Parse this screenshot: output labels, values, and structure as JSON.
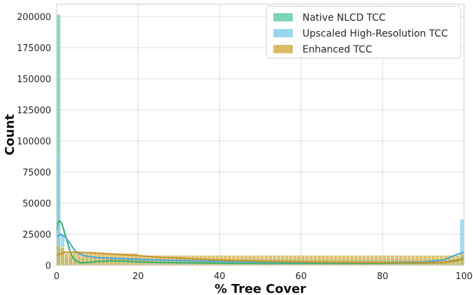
{
  "chart_data": {
    "type": "histogram",
    "xlabel": "% Tree Cover",
    "ylabel": "Count",
    "xlim": [
      0,
      100
    ],
    "ylim": [
      0,
      210000
    ],
    "xticks": [
      0,
      20,
      40,
      60,
      80,
      100
    ],
    "yticks": [
      0,
      25000,
      50000,
      75000,
      100000,
      125000,
      150000,
      175000,
      200000
    ],
    "grid": true,
    "legend_position": "top-right",
    "bin_width": 1,
    "series": [
      {
        "name": "Native NLCD TCC",
        "color": "#66CDAA",
        "kde_color": "#3CB371",
        "bins": [
          {
            "x": 0,
            "value": 201500
          }
        ],
        "kde": [
          [
            0,
            28000
          ],
          [
            0.3,
            34000
          ],
          [
            0.7,
            36000
          ],
          [
            1.2,
            34000
          ],
          [
            1.8,
            28000
          ],
          [
            2.5,
            20000
          ],
          [
            3.2,
            12000
          ],
          [
            4,
            6000
          ],
          [
            5,
            3000
          ],
          [
            6,
            2000
          ],
          [
            8,
            2400
          ],
          [
            10,
            3000
          ],
          [
            13,
            3600
          ],
          [
            16,
            3400
          ],
          [
            20,
            2800
          ],
          [
            25,
            2300
          ],
          [
            30,
            2000
          ],
          [
            40,
            1700
          ],
          [
            50,
            1500
          ],
          [
            60,
            1500
          ],
          [
            70,
            1500
          ],
          [
            80,
            1500
          ],
          [
            85,
            1800
          ],
          [
            90,
            1700
          ],
          [
            95,
            2200
          ],
          [
            98,
            4000
          ],
          [
            100,
            5500
          ]
        ]
      },
      {
        "name": "Upscaled High-Resolution TCC",
        "color": "#87CEEB",
        "kde_color": "#4CA8D6",
        "bins": [
          {
            "x": 0,
            "value": 87000
          },
          {
            "x": 1,
            "value": 25000
          },
          {
            "x": 99,
            "value": 37000
          }
        ],
        "fill_value": 5000,
        "kde": [
          [
            0,
            23000
          ],
          [
            1,
            25000
          ],
          [
            2,
            23000
          ],
          [
            3,
            19000
          ],
          [
            4,
            14000
          ],
          [
            5,
            10000
          ],
          [
            7,
            7500
          ],
          [
            10,
            6200
          ],
          [
            15,
            5500
          ],
          [
            20,
            4800
          ],
          [
            30,
            3800
          ],
          [
            40,
            3200
          ],
          [
            50,
            2800
          ],
          [
            60,
            2500
          ],
          [
            70,
            2300
          ],
          [
            80,
            2300
          ],
          [
            85,
            2500
          ],
          [
            90,
            2600
          ],
          [
            95,
            4200
          ],
          [
            98,
            8500
          ],
          [
            100,
            10500
          ]
        ]
      },
      {
        "name": "Enhanced TCC",
        "color": "#D4B04A",
        "kde_color": "#C9962E",
        "bins": [
          {
            "x": 0,
            "value": 16000
          },
          {
            "x": 1,
            "value": 14000
          },
          {
            "x": 99,
            "value": 9000
          }
        ],
        "fill_value": 8000,
        "kde": [
          [
            0,
            8000
          ],
          [
            2,
            10500
          ],
          [
            5,
            10500
          ],
          [
            10,
            9800
          ],
          [
            15,
            8800
          ],
          [
            20,
            7800
          ],
          [
            25,
            6500
          ],
          [
            30,
            5800
          ],
          [
            40,
            4200
          ],
          [
            50,
            3400
          ],
          [
            60,
            2800
          ],
          [
            70,
            2400
          ],
          [
            80,
            2200
          ],
          [
            90,
            2000
          ],
          [
            95,
            2200
          ],
          [
            98,
            3500
          ],
          [
            100,
            5000
          ]
        ]
      }
    ]
  }
}
